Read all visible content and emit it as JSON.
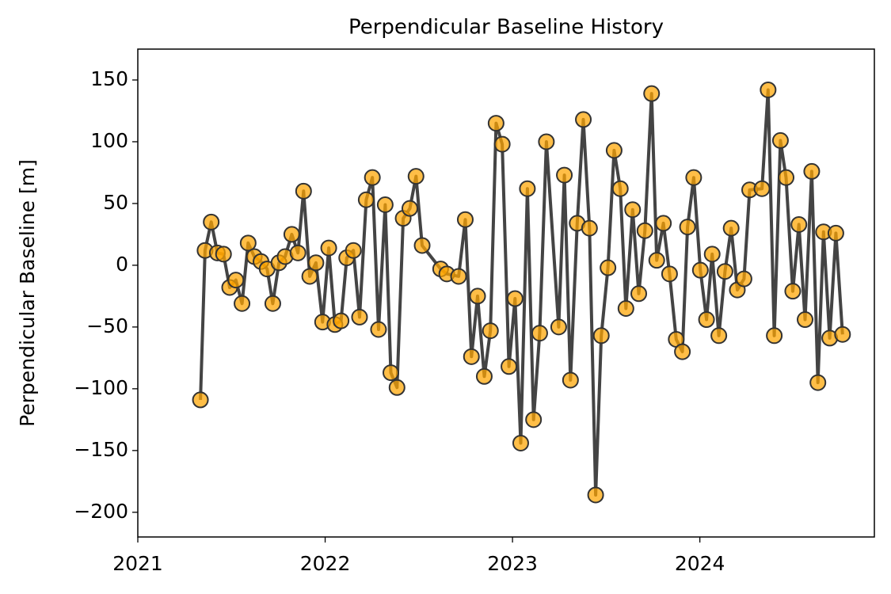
{
  "chart_data": {
    "type": "line",
    "title": "Perpendicular Baseline History",
    "ylabel": "Perpendicular Baseline [m]",
    "x": [
      "2021-05-03",
      "2021-05-12",
      "2021-05-24",
      "2021-06-05",
      "2021-06-17",
      "2021-06-29",
      "2021-07-11",
      "2021-07-23",
      "2021-08-04",
      "2021-08-16",
      "2021-08-29",
      "2021-09-10",
      "2021-09-21",
      "2021-10-03",
      "2021-10-15",
      "2021-10-28",
      "2021-11-09",
      "2021-11-20",
      "2021-12-02",
      "2021-12-14",
      "2021-12-27",
      "2022-01-08",
      "2022-01-20",
      "2022-02-01",
      "2022-02-12",
      "2022-02-25",
      "2022-03-09",
      "2022-03-22",
      "2022-04-03",
      "2022-04-15",
      "2022-04-28",
      "2022-05-09",
      "2022-05-21",
      "2022-06-02",
      "2022-06-15",
      "2022-06-27",
      "2022-07-09",
      "2022-08-14",
      "2022-08-26",
      "2022-09-18",
      "2022-10-01",
      "2022-10-13",
      "2022-10-25",
      "2022-11-07",
      "2022-11-19",
      "2022-11-30",
      "2022-12-12",
      "2022-12-25",
      "2023-01-06",
      "2023-01-17",
      "2023-01-30",
      "2023-02-11",
      "2023-02-23",
      "2023-03-08",
      "2023-04-01",
      "2023-04-12",
      "2023-04-24",
      "2023-05-07",
      "2023-05-19",
      "2023-05-31",
      "2023-06-12",
      "2023-06-23",
      "2023-07-06",
      "2023-07-18",
      "2023-07-30",
      "2023-08-10",
      "2023-08-23",
      "2023-09-04",
      "2023-09-16",
      "2023-09-29",
      "2023-10-09",
      "2023-10-22",
      "2023-11-03",
      "2023-11-16",
      "2023-11-28",
      "2023-12-08",
      "2023-12-20",
      "2024-01-02",
      "2024-01-14",
      "2024-01-25",
      "2024-02-07",
      "2024-02-19",
      "2024-03-02",
      "2024-03-14",
      "2024-03-27",
      "2024-04-07",
      "2024-05-01",
      "2024-05-13",
      "2024-05-25",
      "2024-06-06",
      "2024-06-17",
      "2024-06-30",
      "2024-07-12",
      "2024-07-24",
      "2024-08-06",
      "2024-08-18",
      "2024-08-29",
      "2024-09-10",
      "2024-09-22",
      "2024-10-05"
    ],
    "values": [
      -109,
      12,
      35,
      10,
      9,
      -18,
      -12,
      -31,
      18,
      7,
      3,
      -3,
      -31,
      2,
      7,
      25,
      10,
      60,
      -9,
      2,
      -46,
      14,
      -48,
      -45,
      6,
      12,
      -42,
      53,
      71,
      -52,
      49,
      -87,
      -99,
      38,
      46,
      72,
      16,
      -3,
      -7,
      -9,
      37,
      -74,
      -25,
      -90,
      -53,
      115,
      98,
      -82,
      -27,
      -144,
      62,
      -125,
      -55,
      100,
      -50,
      73,
      -93,
      34,
      118,
      30,
      -186,
      -57,
      -2,
      93,
      62,
      -35,
      45,
      -23,
      28,
      139,
      4,
      34,
      -7,
      -60,
      -70,
      31,
      71,
      -4,
      -44,
      9,
      -57,
      -5,
      30,
      -20,
      -11,
      61,
      62,
      142,
      -57,
      101,
      71,
      -21,
      33,
      -44,
      76,
      -95,
      27,
      -59,
      26,
      -56
    ],
    "color": "#444444",
    "marker_color": "#ffa500",
    "xlim": [
      "2021-01-01",
      "2024-12-06"
    ],
    "xticks": [
      {
        "value": "2021-01-01",
        "label": "2021"
      },
      {
        "value": "2022-01-01",
        "label": "2022"
      },
      {
        "value": "2023-01-01",
        "label": "2023"
      },
      {
        "value": "2024-01-01",
        "label": "2024"
      }
    ],
    "ylim": [
      -220,
      175
    ],
    "yticks": [
      -200,
      -150,
      -100,
      -50,
      0,
      50,
      100,
      150
    ],
    "grid": false
  }
}
